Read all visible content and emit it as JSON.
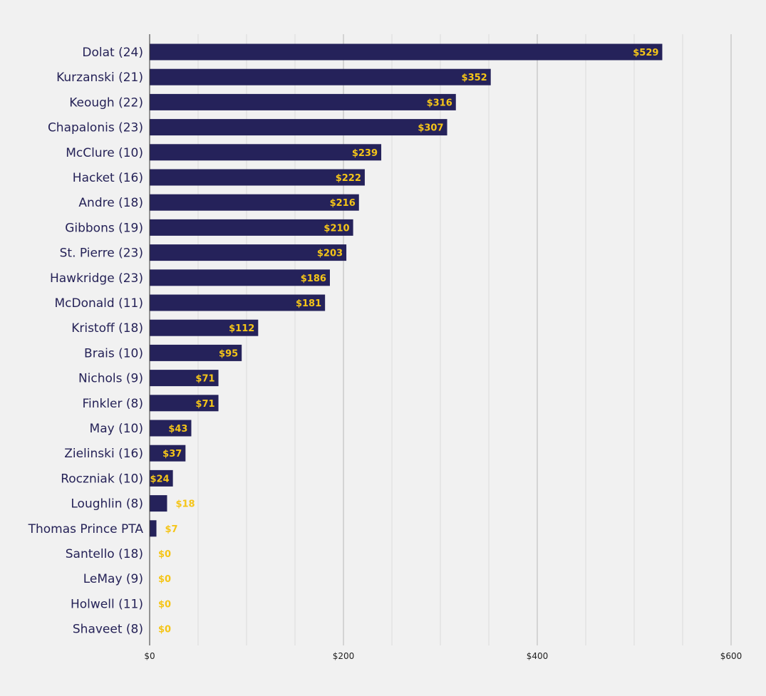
{
  "chart_data": {
    "type": "bar",
    "orientation": "horizontal",
    "categories": [
      "Dolat (24)",
      "Kurzanski (21)",
      "Keough (22)",
      "Chapalonis (23)",
      "McClure (10)",
      "Hacket (16)",
      "Andre (18)",
      "Gibbons (19)",
      "St. Pierre (23)",
      "Hawkridge (23)",
      "McDonald (11)",
      "Kristoff (18)",
      "Brais (10)",
      "Nichols (9)",
      "Finkler (8)",
      "May (10)",
      "Zielinski (16)",
      "Roczniak (10)",
      "Loughlin (8)",
      "Thomas Prince PTA",
      "Santello (18)",
      "LeMay (9)",
      "Holwell (11)",
      "Shaveet (8)"
    ],
    "values": [
      529,
      352,
      316,
      307,
      239,
      222,
      216,
      210,
      203,
      186,
      181,
      112,
      95,
      71,
      71,
      43,
      37,
      24,
      18,
      7,
      0,
      0,
      0,
      0
    ],
    "value_labels": [
      "$529",
      "$352",
      "$316",
      "$307",
      "$239",
      "$222",
      "$216",
      "$210",
      "$203",
      "$186",
      "$181",
      "$112",
      "$95",
      "$71",
      "$71",
      "$43",
      "$37",
      "$24",
      "$18",
      "$7",
      "$0",
      "$0",
      "$0",
      "$0"
    ],
    "title": "",
    "xlabel": "",
    "ylabel": "",
    "xlim": [
      0,
      600
    ],
    "x_ticks": [
      0,
      200,
      400,
      600
    ],
    "x_tick_labels": [
      "$0",
      "$200",
      "$400",
      "$600"
    ],
    "x_minor_step": 50,
    "grid": true,
    "legend": "none",
    "colors": {
      "background": "#f1f1f1",
      "bar": "#25225a",
      "value_label": "#f5c518",
      "category_label": "#252257",
      "major_grid": "#b7b7b7",
      "minor_grid": "#dcdcdc",
      "axis": "#333333",
      "tick_label": "#222222"
    }
  }
}
